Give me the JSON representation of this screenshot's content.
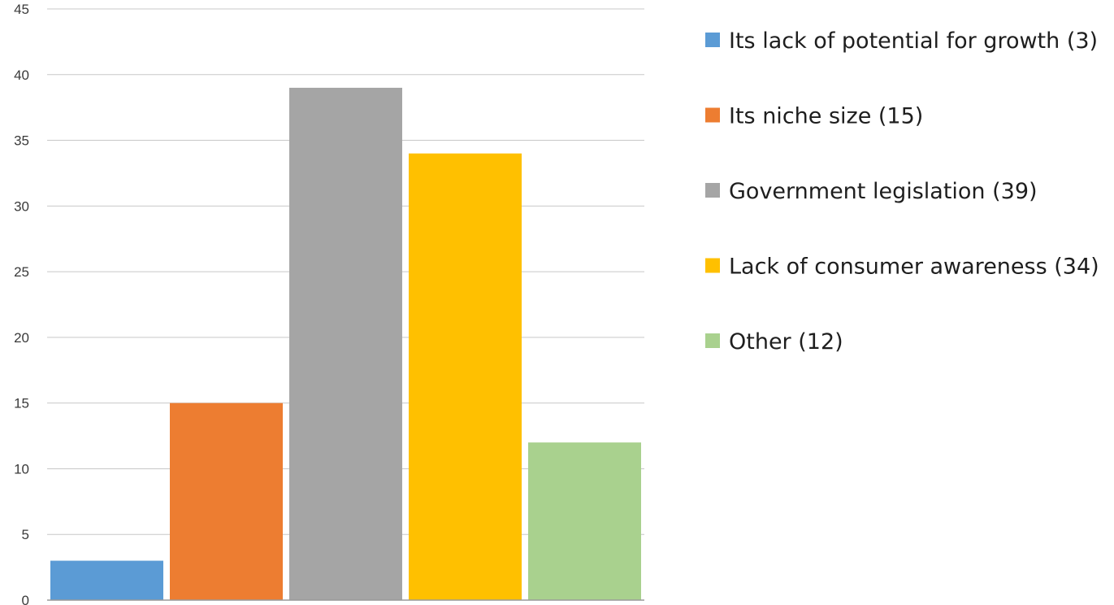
{
  "chart_data": {
    "type": "bar",
    "categories": [
      "Its lack of potential for growth (3)",
      "Its niche size (15)",
      "Government legislation  (39)",
      "Lack of consumer awareness (34)",
      "Other (12)"
    ],
    "values": [
      3,
      15,
      39,
      34,
      12
    ],
    "colors": [
      "#5b9bd5",
      "#ed7d31",
      "#a5a5a5",
      "#ffc000",
      "#a9d18e"
    ],
    "ylim": [
      0,
      45
    ],
    "yticks": [
      0,
      5,
      10,
      15,
      20,
      25,
      30,
      35,
      40,
      45
    ],
    "grid": true,
    "legend_position": "right"
  }
}
